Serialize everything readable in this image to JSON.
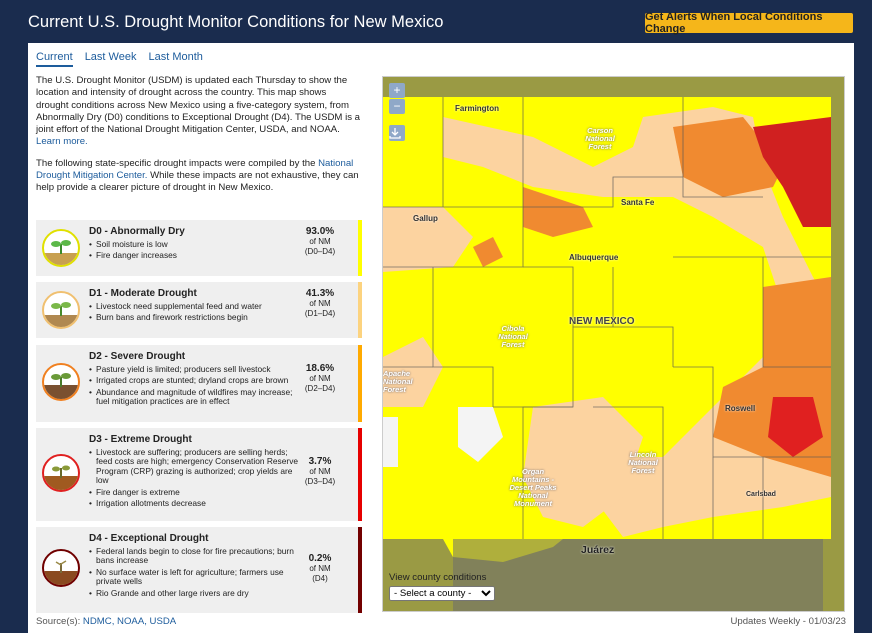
{
  "header": {
    "title": "Current U.S. Drought Monitor Conditions for New Mexico",
    "alert_button": "Get Alerts When Local Conditions Change"
  },
  "tabs": [
    {
      "label": "Current"
    },
    {
      "label": "Last Week"
    },
    {
      "label": "Last Month"
    }
  ],
  "intro": {
    "p1": "The U.S. Drought Monitor (USDM) is updated each Thursday to show the location and intensity of drought across the country. This map shows drought conditions across New Mexico using a five-category system, from Abnormally Dry (D0) conditions to Exceptional Drought (D4). The USDM is a joint effort of the National Drought Mitigation Center, USDA, and NOAA.",
    "p1_link": "Learn more.",
    "p2_pre": "The following state-specific drought impacts were compiled by the",
    "p2_link": "National Drought Mitigation Center.",
    "p2_post": "While these impacts are not exhaustive, they can help provide a clearer picture of drought in New Mexico."
  },
  "categories": [
    {
      "title": "D0 - Abnormally Dry",
      "bullets": [
        "Soil moisture is low",
        "Fire danger increases"
      ],
      "pct": "93.0%",
      "of": "of NM",
      "range": "(D0–D4)",
      "color": "#ffff00"
    },
    {
      "title": "D1 - Moderate Drought",
      "bullets": [
        "Livestock need supplemental feed and water",
        "Burn bans and firework restrictions begin"
      ],
      "pct": "41.3%",
      "of": "of NM",
      "range": "(D1–D4)",
      "color": "#fcd37f"
    },
    {
      "title": "D2 - Severe Drought",
      "bullets": [
        "Pasture yield is limited; producers sell livestock",
        "Irrigated crops are stunted; dryland crops are brown",
        "Abundance and magnitude of wildfires may increase; fuel mitigation practices are in effect"
      ],
      "pct": "18.6%",
      "of": "of NM",
      "range": "(D2–D4)",
      "color": "#ffaa00"
    },
    {
      "title": "D3 - Extreme Drought",
      "bullets": [
        "Livestock are suffering; producers are selling herds; feed costs are high; emergency Conservation Reserve Program (CRP) grazing is authorized; crop yields are low",
        "Fire danger is extreme",
        "Irrigation allotments decrease"
      ],
      "pct": "3.7%",
      "of": "of NM",
      "range": "(D3–D4)",
      "color": "#e60000"
    },
    {
      "title": "D4 - Exceptional Drought",
      "bullets": [
        "Federal lands begin to close for fire precautions; burn bans increase",
        "No surface water is left for agriculture; farmers use private wells",
        "Rio Grande and other large rivers are dry"
      ],
      "pct": "0.2%",
      "of": "of NM",
      "range": "(D4)",
      "color": "#730000"
    }
  ],
  "map": {
    "zoom_in": "+",
    "zoom_out": "−",
    "cities": [
      "Farmington",
      "Santa Fe",
      "Gallup",
      "Albuquerque",
      "NEW MEXICO",
      "Roswell",
      "Carlsbad",
      "Juárez"
    ],
    "forests": [
      "Carson National Forest",
      "Cibola National Forest",
      "Lincoln National Forest",
      "Organ Mountains - Desert Peaks National Monument",
      "Apache National Forest"
    ],
    "county_label": "View county conditions",
    "county_select": "- Select a county -"
  },
  "footer": {
    "source_label": "Source(s):",
    "sources": "NDMC, NOAA, USDA",
    "updated": "Updates Weekly  -  01/03/23"
  }
}
